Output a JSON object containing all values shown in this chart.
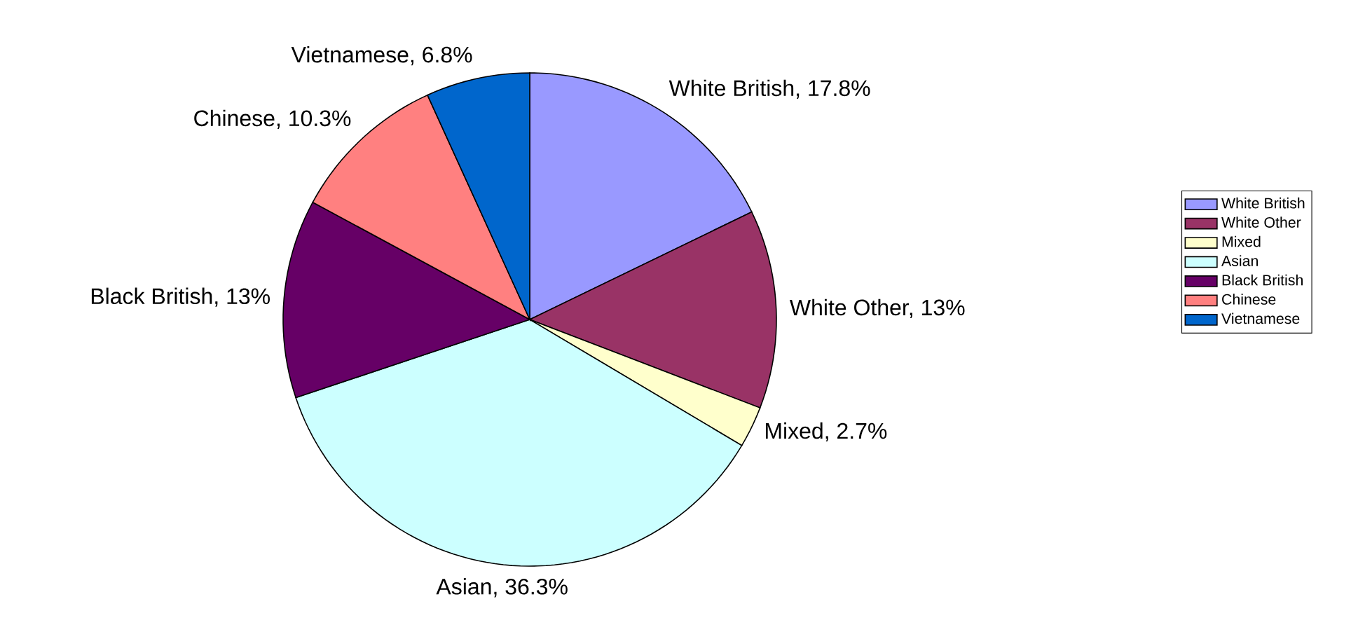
{
  "chart_data": {
    "type": "pie",
    "categories": [
      "White British",
      "White Other",
      "Mixed",
      "Asian",
      "Black British",
      "Chinese",
      "Vietnamese"
    ],
    "values": [
      17.8,
      13,
      2.7,
      36.3,
      13,
      10.3,
      6.8
    ],
    "colors": [
      "#9999ff",
      "#993366",
      "#ffffcc",
      "#ccffff",
      "#660066",
      "#ff8080",
      "#0066cc"
    ],
    "value_labels": [
      "White British, 17.8%",
      "White Other, 13%",
      "Mixed, 2.7%",
      "Asian, 36.3%",
      "Black British, 13%",
      "Chinese, 10.3%",
      "Vietnamese, 6.8%"
    ],
    "legend": "right"
  }
}
